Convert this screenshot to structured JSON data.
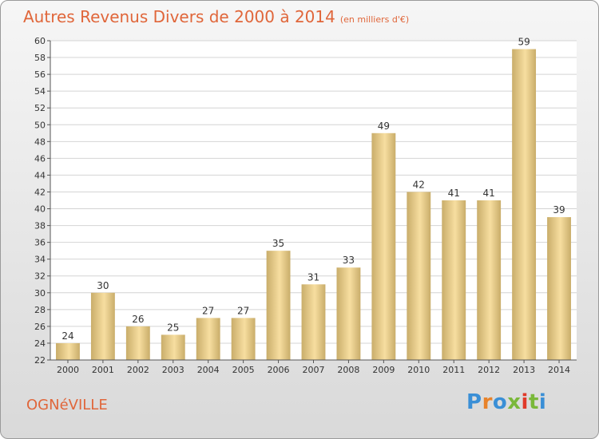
{
  "page": {
    "title": "Autres Revenus Divers de 2000 à 2014",
    "subtitle": "(en milliers d'€)",
    "commune": "OGNéVILLE",
    "logo": {
      "letters": [
        "P",
        "r",
        "o",
        "x",
        "i",
        "t",
        "i"
      ],
      "colors": [
        "#3a8fd6",
        "#e8832a",
        "#3a8fd6",
        "#7ab83a",
        "#e03a2a",
        "#7ab83a",
        "#3a8fd6"
      ]
    }
  },
  "chart_data": {
    "type": "bar",
    "categories": [
      "2000",
      "2001",
      "2002",
      "2003",
      "2004",
      "2005",
      "2006",
      "2007",
      "2008",
      "2009",
      "2010",
      "2011",
      "2012",
      "2013",
      "2014"
    ],
    "values": [
      24,
      30,
      26,
      25,
      27,
      27,
      35,
      31,
      33,
      49,
      42,
      41,
      41,
      59,
      39
    ],
    "ylim": [
      22,
      60
    ],
    "yticks": [
      22,
      24,
      26,
      28,
      30,
      32,
      34,
      36,
      38,
      40,
      42,
      44,
      46,
      48,
      50,
      52,
      54,
      56,
      58,
      60
    ],
    "grid": "horizontal",
    "legend": "none",
    "colors": {
      "bar_light": "#f7dea0",
      "bar_dark": "#c9ad6a",
      "text": "#333333"
    }
  }
}
